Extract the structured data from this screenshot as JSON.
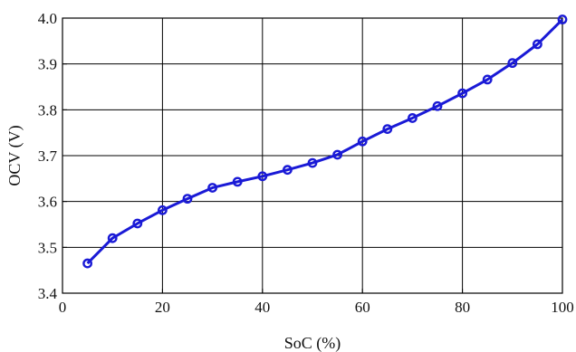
{
  "chart_data": {
    "type": "line",
    "title": "",
    "xlabel": "SoC (%)",
    "ylabel": "OCV (V)",
    "xlim": [
      0,
      100
    ],
    "ylim": [
      3.4,
      4.0
    ],
    "x_ticks": [
      "0",
      "20",
      "40",
      "60",
      "80",
      "100"
    ],
    "y_ticks": [
      "3.4",
      "3.5",
      "3.6",
      "3.7",
      "3.8",
      "3.9",
      "4.0"
    ],
    "grid": true,
    "series": [
      {
        "color": "#1a1ad6",
        "marker": "circle",
        "x": [
          5,
          10,
          15,
          20,
          25,
          30,
          35,
          40,
          45,
          50,
          55,
          60,
          65,
          70,
          75,
          80,
          85,
          90,
          95,
          100
        ],
        "y": [
          3.465,
          3.52,
          3.552,
          3.581,
          3.606,
          3.63,
          3.643,
          3.655,
          3.669,
          3.684,
          3.702,
          3.731,
          3.758,
          3.782,
          3.808,
          3.836,
          3.866,
          3.902,
          3.943,
          3.997
        ]
      }
    ]
  }
}
